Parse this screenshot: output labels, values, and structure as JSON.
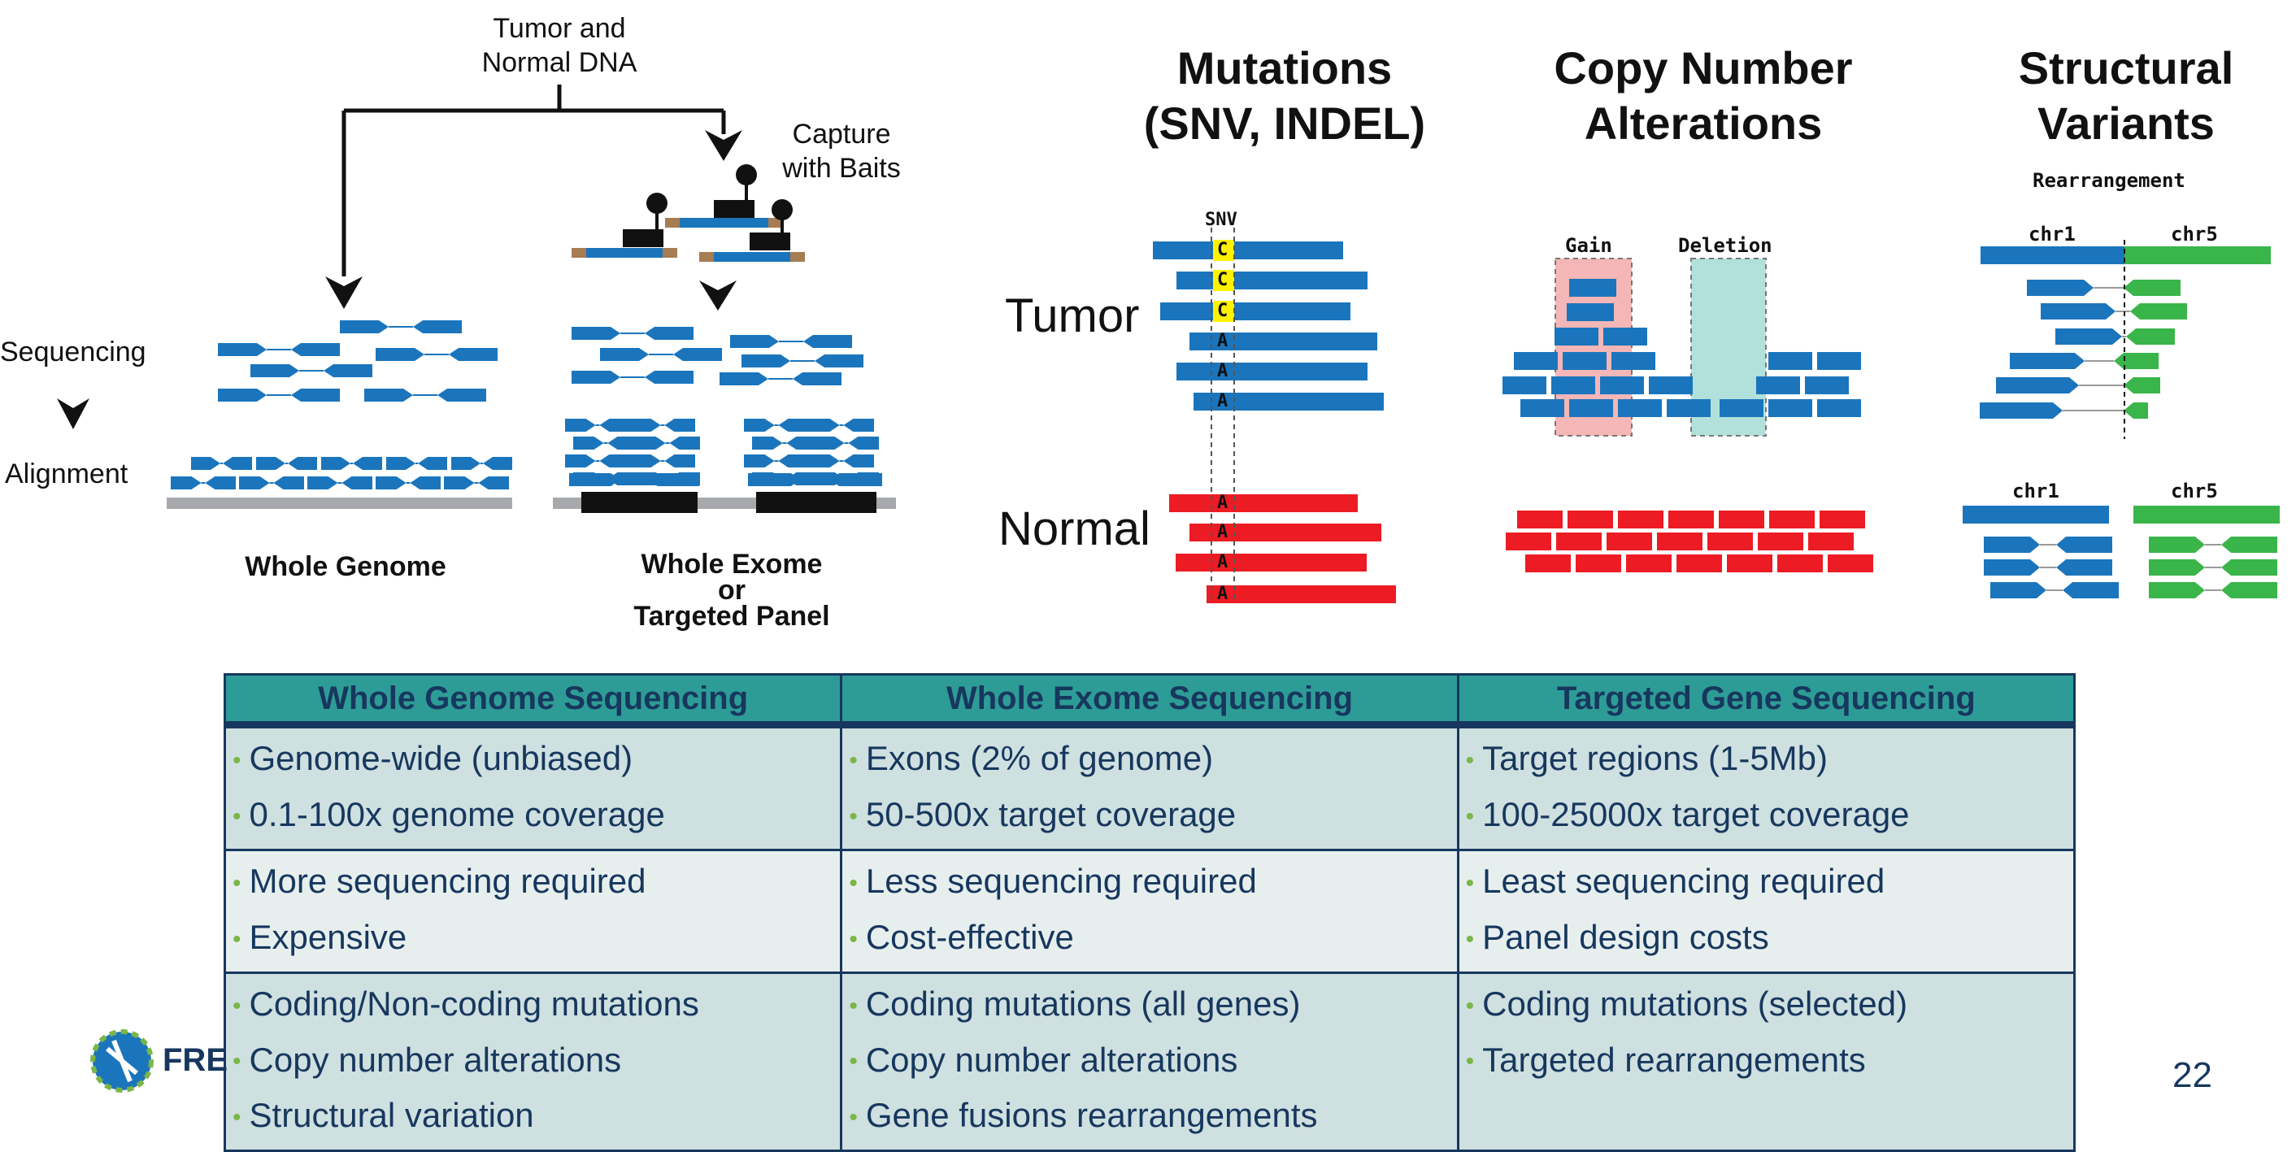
{
  "left_panel": {
    "input_label": "Tumor and\nNormal DNA",
    "capture_label": "Capture\nwith Baits",
    "sequencing_label": "Sequencing",
    "alignment_label": "Alignment",
    "wg_label": "Whole Genome",
    "we_label_1": "Whole Exome",
    "we_label_2": "or",
    "we_label_3": "Targeted Panel"
  },
  "headings": {
    "mutations_1": "Mutations",
    "mutations_2": "(SNV, INDEL)",
    "cna_1": "Copy Number",
    "cna_2": "Alterations",
    "sv_1": "Structural",
    "sv_2": "Variants"
  },
  "mutations": {
    "tumor_label": "Tumor",
    "normal_label": "Normal",
    "snv_label": "SNV",
    "tumor_bases": [
      "C",
      "C",
      "C",
      "A",
      "A",
      "A"
    ],
    "normal_bases": [
      "A",
      "A",
      "A",
      "A"
    ]
  },
  "cna": {
    "gain_label": "Gain",
    "deletion_label": "Deletion"
  },
  "sv": {
    "rearrangement_label": "Rearrangement",
    "chr1_label": "chr1",
    "chr5_label": "chr5"
  },
  "colors": {
    "blue": "#1b75bc",
    "red": "#ed1c24",
    "green": "#39b54a",
    "yellow": "#fff200",
    "gain_fill": "#f4b6b6",
    "deletion_fill": "#b2e1dc",
    "teal_header": "#2e9c96",
    "navy_text": "#17375e"
  },
  "table": {
    "headers": [
      "Whole Genome Sequencing",
      "Whole Exome Sequencing",
      "Targeted Gene Sequencing"
    ],
    "rows": [
      [
        [
          "Genome-wide (unbiased)",
          "0.1-100x genome coverage"
        ],
        [
          "Exons (2% of genome)",
          "50-500x target coverage"
        ],
        [
          "Target regions (1-5Mb)",
          "100-25000x target coverage"
        ]
      ],
      [
        [
          "More sequencing required",
          "Expensive"
        ],
        [
          "Less sequencing required",
          "Cost-effective"
        ],
        [
          "Least sequencing required",
          "Panel design costs"
        ]
      ],
      [
        [
          "Coding/Non-coding mutations",
          "Copy number alterations",
          "Structural variation"
        ],
        [
          "Coding mutations (all genes)",
          "Copy number alterations",
          "Gene fusions rearrangements"
        ],
        [
          "Coding mutations (selected)",
          "Targeted rearrangements",
          ""
        ]
      ]
    ]
  },
  "footer": {
    "logo_text": "FRE",
    "page_number": "22"
  }
}
